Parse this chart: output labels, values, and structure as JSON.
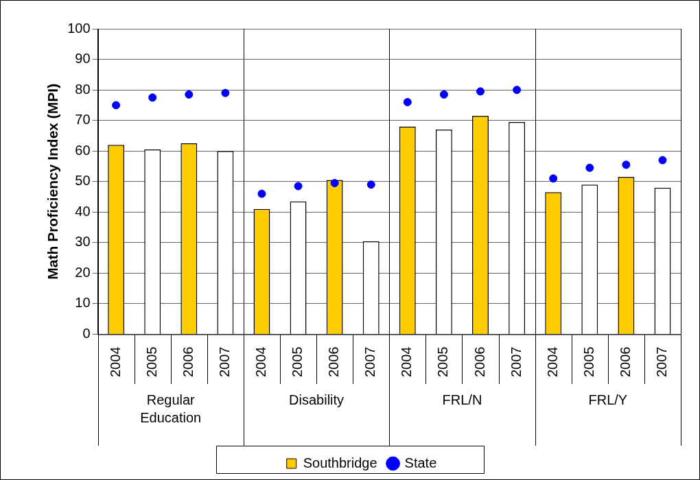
{
  "chart_data": {
    "type": "bar",
    "ylabel": "Math Proficiency Index (MPI)",
    "categories": [
      "2004",
      "2005",
      "2006",
      "2007",
      "2004",
      "2005",
      "2006",
      "2007",
      "2004",
      "2005",
      "2006",
      "2007",
      "2004",
      "2005",
      "2006",
      "2007"
    ],
    "annotations": [
      "Regular Education",
      "Disability",
      "FRL/N",
      "FRL/Y"
    ],
    "series": [
      {
        "name": "Southbridge",
        "color": "#ffcc00",
        "colors": [
          "#ffcc00",
          "#ffffff",
          "#ffcc00",
          "#ffffff",
          "#ffcc00",
          "#ffffff",
          "#ffcc00",
          "#ffffff",
          "#ffcc00",
          "#ffffff",
          "#ffcc00",
          "#ffffff",
          "#ffcc00",
          "#ffffff",
          "#ffcc00",
          "#ffffff"
        ],
        "values": [
          62,
          60.5,
          62.5,
          60,
          41,
          43.5,
          50.5,
          30.5,
          68,
          67,
          71.5,
          69.5,
          46.5,
          49,
          51.5,
          48
        ]
      },
      {
        "name": "State",
        "type": "scatter",
        "color": "#0000ff",
        "marker": "circle",
        "values": [
          75,
          77.5,
          78.5,
          79,
          46,
          48.5,
          49.5,
          49,
          76,
          78.5,
          79.5,
          80,
          51,
          54.5,
          55.5,
          57
        ]
      }
    ],
    "ylim": [
      0,
      100
    ],
    "yticks": [
      0,
      10,
      20,
      30,
      40,
      50,
      60,
      70,
      80,
      90,
      100
    ],
    "grid": true,
    "legend": "bottom"
  }
}
